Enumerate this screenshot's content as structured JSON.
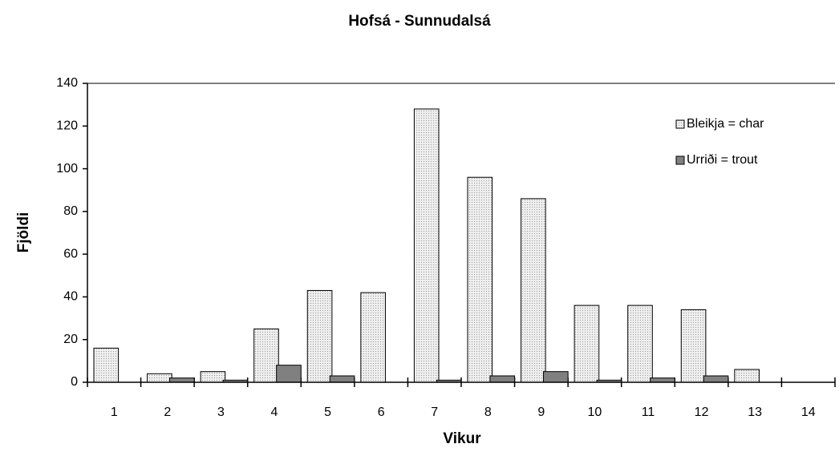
{
  "chart_data": {
    "type": "bar",
    "title": "Hofsá - Sunnudalsá",
    "x_label": "Vikur",
    "y_label": "Fjöldi",
    "categories": [
      "1",
      "2",
      "3",
      "4",
      "5",
      "6",
      "7",
      "8",
      "9",
      "10",
      "11",
      "12",
      "13",
      "14"
    ],
    "series": [
      {
        "name": "Bleikja = char",
        "color": "#d9d9d9",
        "values": [
          16,
          4,
          5,
          25,
          43,
          42,
          128,
          96,
          86,
          36,
          36,
          34,
          6,
          0
        ]
      },
      {
        "name": "Urriði = trout",
        "color": "#808080",
        "values": [
          0,
          2,
          1,
          8,
          3,
          0,
          1,
          3,
          5,
          1,
          2,
          3,
          0,
          0
        ]
      }
    ],
    "ylim": [
      0,
      140
    ],
    "yticks": [
      0,
      20,
      40,
      60,
      80,
      100,
      120,
      140
    ],
    "legend": "upper right"
  }
}
